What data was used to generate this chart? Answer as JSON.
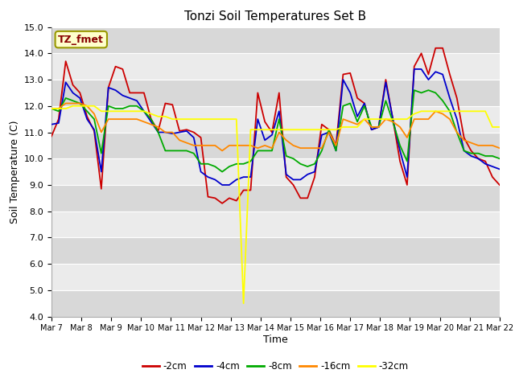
{
  "title": "Tonzi Soil Temperatures Set B",
  "xlabel": "Time",
  "ylabel": "Soil Temperature (C)",
  "ylim": [
    4.0,
    15.0
  ],
  "yticks": [
    4.0,
    5.0,
    6.0,
    7.0,
    8.0,
    9.0,
    10.0,
    11.0,
    12.0,
    13.0,
    14.0,
    15.0
  ],
  "annotation": "TZ_fmet",
  "legend": [
    "-2cm",
    "-4cm",
    "-8cm",
    "-16cm",
    "-32cm"
  ],
  "colors": [
    "#cc0000",
    "#0000cc",
    "#00aa00",
    "#ff8800",
    "#ffff00"
  ],
  "fig_bg": "#ffffff",
  "plot_bg": "#e8e8e8",
  "stripe_light": "#ebebeb",
  "stripe_dark": "#d8d8d8",
  "x_labels": [
    "Mar 7",
    "Mar 8",
    "Mar 9",
    "Mar 10",
    "Mar 11",
    "Mar 12",
    "Mar 13",
    "Mar 14",
    "Mar 15",
    "Mar 16",
    "Mar 17",
    "Mar 18",
    "Mar 19",
    "Mar 20",
    "Mar 21",
    "Mar 22"
  ],
  "series": {
    "neg2cm": [
      10.85,
      11.5,
      13.7,
      12.8,
      12.5,
      11.6,
      11.05,
      8.85,
      12.7,
      13.5,
      13.4,
      12.5,
      12.5,
      12.5,
      11.5,
      11.05,
      12.1,
      12.05,
      11.05,
      11.1,
      11.0,
      10.8,
      8.55,
      8.5,
      8.3,
      8.5,
      8.4,
      8.8,
      8.8,
      12.5,
      11.4,
      11.0,
      12.5,
      9.3,
      9.0,
      8.5,
      8.5,
      9.3,
      11.3,
      11.1,
      10.5,
      13.2,
      13.25,
      12.3,
      12.1,
      11.1,
      11.2,
      13.0,
      11.5,
      9.9,
      9.0,
      13.5,
      14.0,
      13.2,
      14.2,
      14.2,
      13.2,
      12.3,
      10.8,
      10.3,
      10.0,
      9.9,
      9.3,
      9.0
    ],
    "neg4cm": [
      11.3,
      11.35,
      12.9,
      12.5,
      12.3,
      11.5,
      11.1,
      9.5,
      12.7,
      12.6,
      12.4,
      12.3,
      12.2,
      11.8,
      11.4,
      11.0,
      11.0,
      10.95,
      11.0,
      11.05,
      10.8,
      9.5,
      9.3,
      9.2,
      9.0,
      9.0,
      9.2,
      9.3,
      9.3,
      11.5,
      10.7,
      10.9,
      11.8,
      9.4,
      9.2,
      9.2,
      9.4,
      9.5,
      10.9,
      11.0,
      10.3,
      13.0,
      12.5,
      11.6,
      12.1,
      11.1,
      11.2,
      12.9,
      11.5,
      10.3,
      9.3,
      13.4,
      13.4,
      13.0,
      13.3,
      13.2,
      12.3,
      11.5,
      10.3,
      10.1,
      10.0,
      9.8,
      9.7,
      9.6
    ],
    "neg8cm": [
      11.9,
      11.8,
      12.3,
      12.2,
      12.1,
      11.8,
      11.5,
      10.2,
      12.0,
      11.9,
      11.9,
      12.0,
      12.0,
      11.8,
      11.5,
      11.0,
      10.3,
      10.3,
      10.3,
      10.3,
      10.2,
      9.8,
      9.8,
      9.7,
      9.5,
      9.7,
      9.8,
      9.8,
      9.9,
      10.3,
      10.3,
      10.3,
      11.5,
      10.1,
      10.0,
      9.8,
      9.7,
      9.8,
      10.3,
      11.1,
      10.3,
      12.0,
      12.1,
      11.4,
      12.0,
      11.2,
      11.2,
      12.2,
      11.4,
      10.5,
      9.9,
      12.6,
      12.5,
      12.6,
      12.5,
      12.2,
      11.8,
      11.0,
      10.3,
      10.2,
      10.2,
      10.1,
      10.1,
      10.0
    ],
    "neg16cm": [
      11.9,
      11.9,
      12.1,
      12.1,
      12.1,
      12.0,
      11.7,
      11.0,
      11.5,
      11.5,
      11.5,
      11.5,
      11.5,
      11.4,
      11.3,
      11.2,
      11.0,
      11.0,
      10.7,
      10.6,
      10.5,
      10.5,
      10.5,
      10.5,
      10.3,
      10.5,
      10.5,
      10.5,
      10.5,
      10.4,
      10.5,
      10.4,
      11.0,
      10.7,
      10.5,
      10.4,
      10.4,
      10.4,
      10.4,
      11.0,
      10.5,
      11.5,
      11.4,
      11.3,
      11.5,
      11.2,
      11.2,
      11.5,
      11.4,
      11.2,
      10.8,
      11.5,
      11.5,
      11.5,
      11.8,
      11.7,
      11.5,
      11.0,
      10.7,
      10.6,
      10.5,
      10.5,
      10.5,
      10.4
    ],
    "neg32cm": [
      11.9,
      11.9,
      11.9,
      12.0,
      12.0,
      12.0,
      12.0,
      11.8,
      11.8,
      11.8,
      11.8,
      11.8,
      11.8,
      11.8,
      11.7,
      11.6,
      11.6,
      11.5,
      11.5,
      11.5,
      11.5,
      11.5,
      11.5,
      11.5,
      11.5,
      11.5,
      11.5,
      4.5,
      11.1,
      11.1,
      11.1,
      11.1,
      11.1,
      11.1,
      11.1,
      11.1,
      11.1,
      11.1,
      11.1,
      11.1,
      11.1,
      11.2,
      11.2,
      11.2,
      11.5,
      11.5,
      11.5,
      11.5,
      11.5,
      11.5,
      11.5,
      11.7,
      11.8,
      11.8,
      11.8,
      11.8,
      11.8,
      11.8,
      11.8,
      11.8,
      11.8,
      11.8,
      11.2,
      11.2
    ]
  }
}
